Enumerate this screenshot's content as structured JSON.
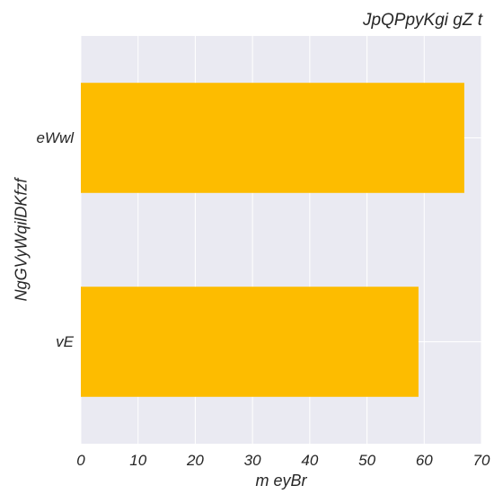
{
  "chart_data": {
    "type": "bar",
    "orientation": "horizontal",
    "title": "JpQPpyKgi gZ t",
    "xlabel": "m eyBr",
    "ylabel": "NgGVyWqilDKfzf",
    "categories": [
      "eWwl",
      "vE"
    ],
    "values": [
      67,
      59
    ],
    "xlim": [
      0,
      70
    ],
    "xticks": [
      "0",
      "10",
      "20",
      "30",
      "40",
      "50",
      "60",
      "70"
    ],
    "grid": true,
    "legend": "none",
    "colors": {
      "bar": "#FDBC00",
      "plot_background": "#EAEAF2",
      "grid": "#FFFFFF"
    }
  }
}
